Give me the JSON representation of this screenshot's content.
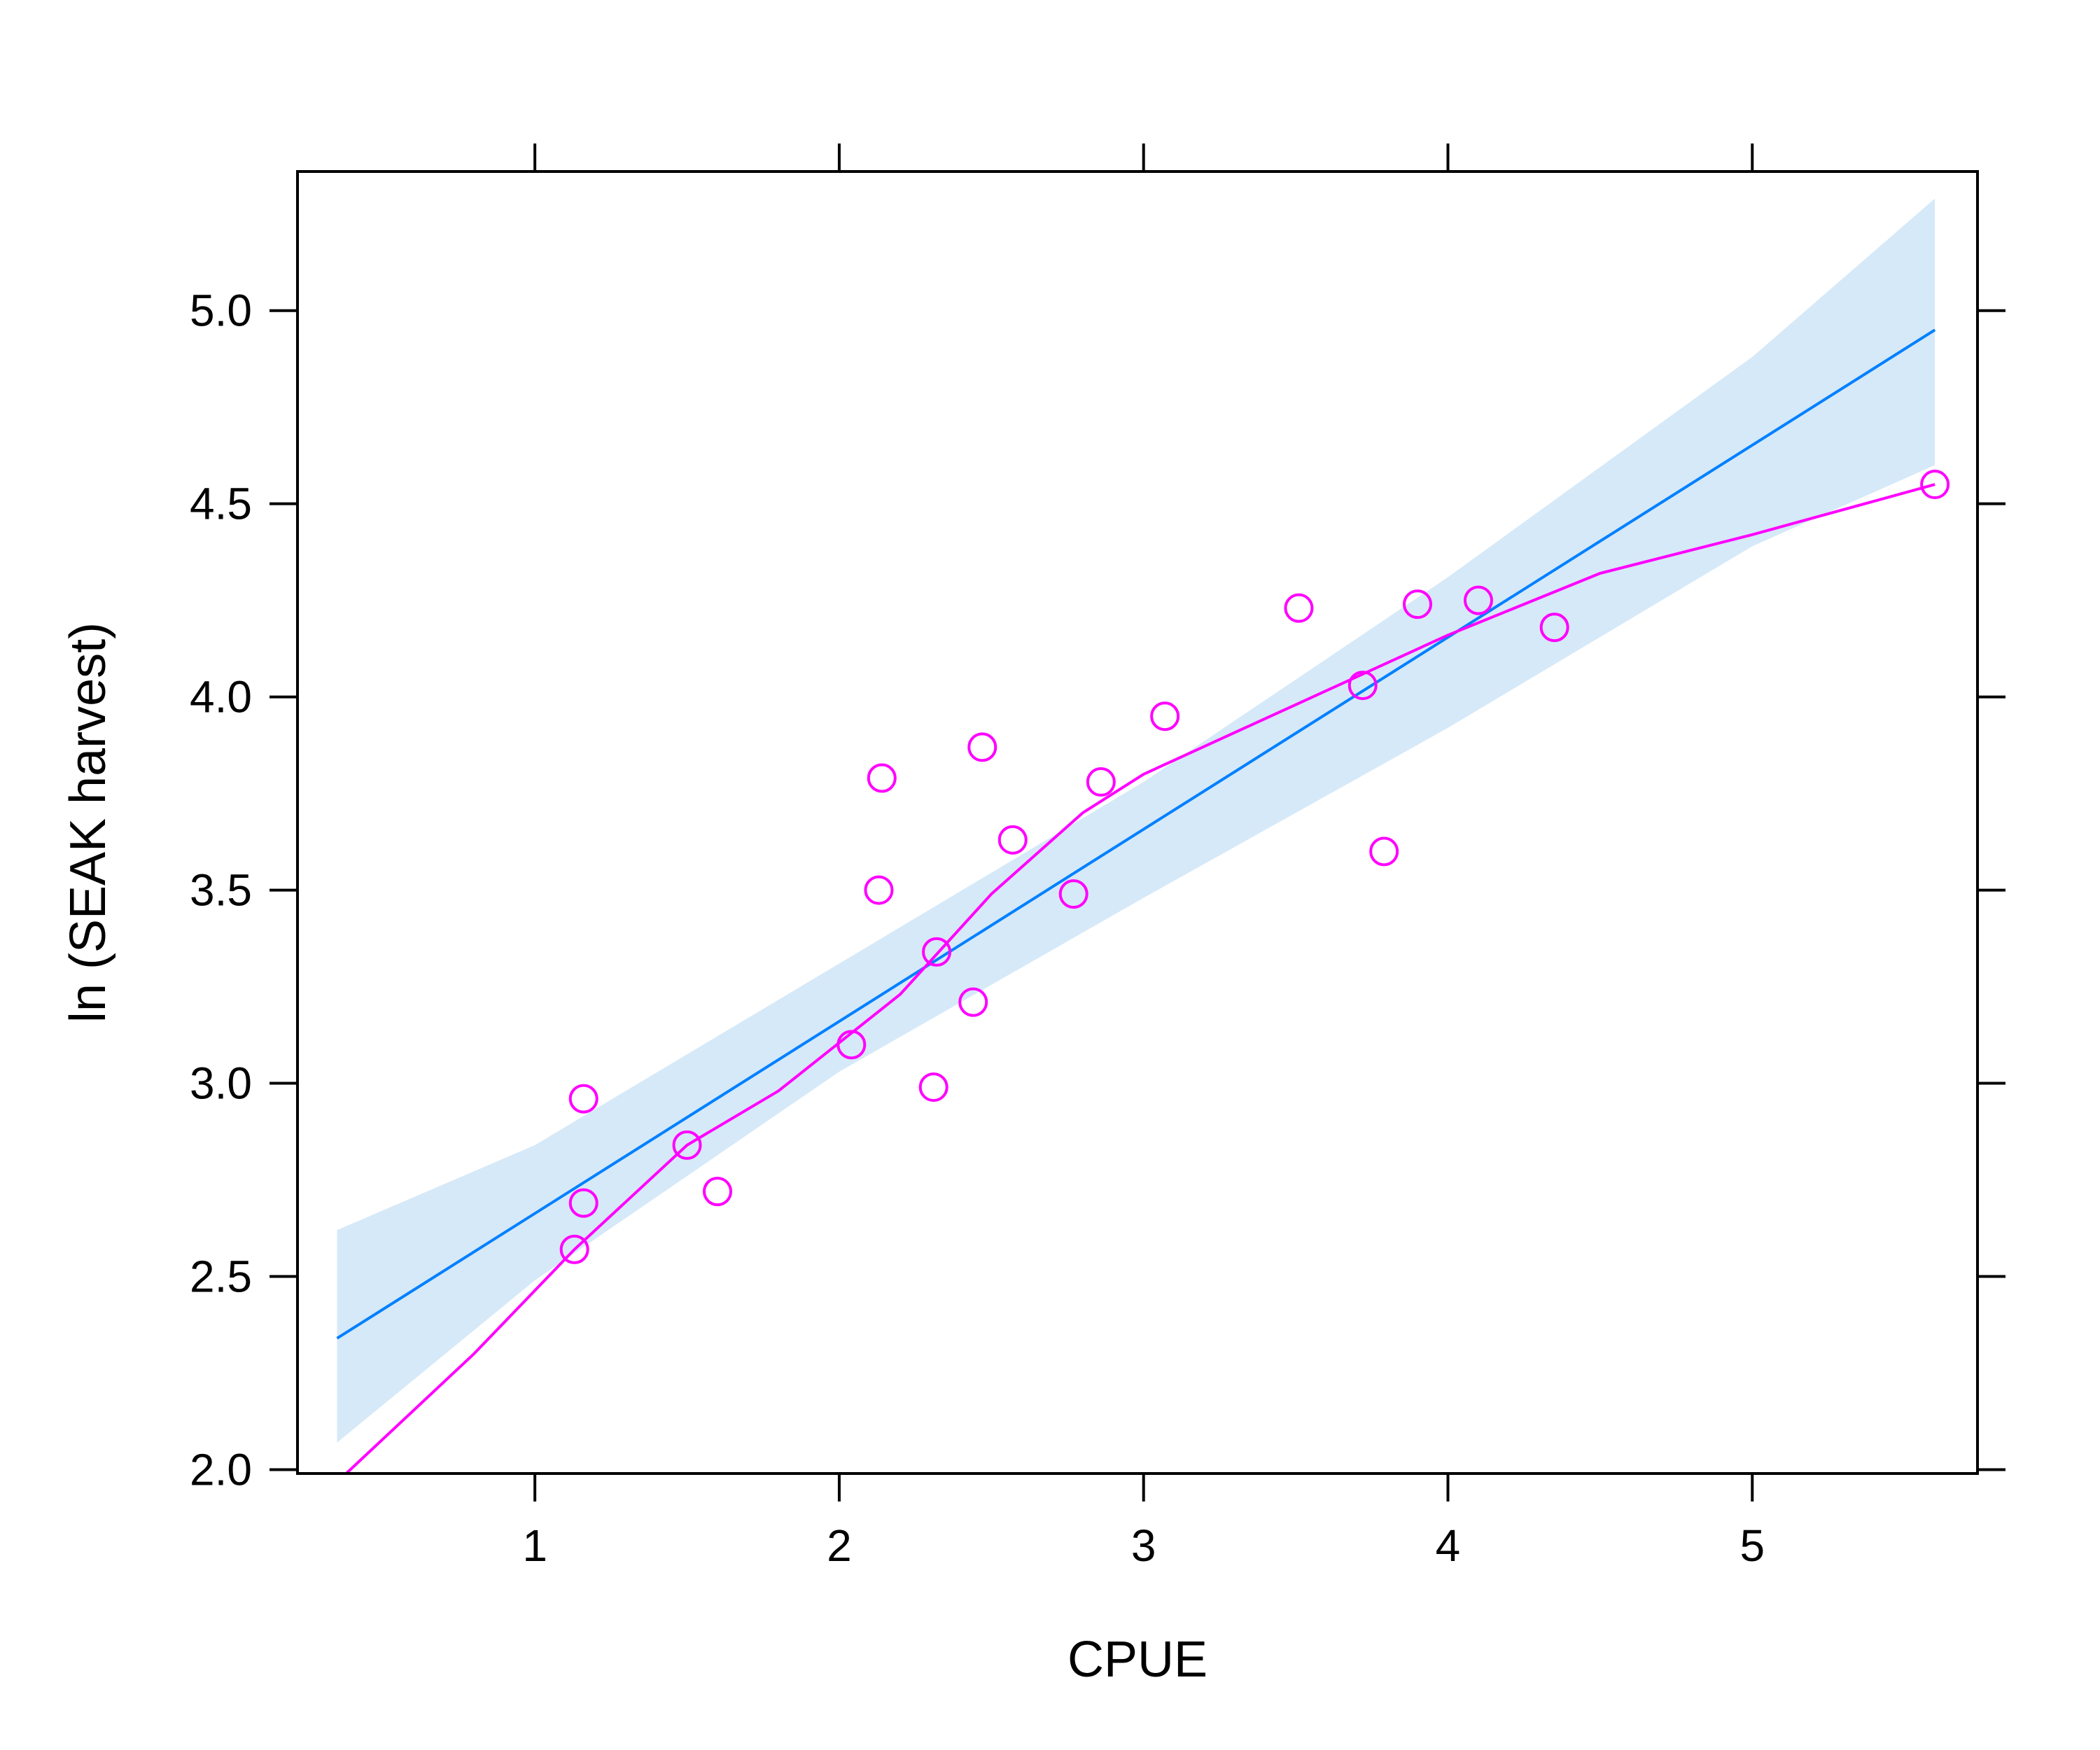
{
  "chart_data": {
    "type": "scatter",
    "title": "",
    "xlabel": "CPUE",
    "ylabel": "ln (SEAK harvest)",
    "xlim": [
      0.22,
      5.74
    ],
    "ylim": [
      1.99,
      5.36
    ],
    "x_ticks": [
      {
        "value": 1,
        "label": "1"
      },
      {
        "value": 2,
        "label": "2"
      },
      {
        "value": 3,
        "label": "3"
      },
      {
        "value": 4,
        "label": "4"
      },
      {
        "value": 5,
        "label": "5"
      }
    ],
    "y_ticks": [
      {
        "value": 2.0,
        "label": "2.0"
      },
      {
        "value": 2.5,
        "label": "2.5"
      },
      {
        "value": 3.0,
        "label": "3.0"
      },
      {
        "value": 3.5,
        "label": "3.5"
      },
      {
        "value": 4.0,
        "label": "4.0"
      },
      {
        "value": 4.5,
        "label": "4.5"
      },
      {
        "value": 5.0,
        "label": "5.0"
      }
    ],
    "grid": false,
    "colors": {
      "points": "#ff00ff",
      "smooth": "#ff00ff",
      "fit": "#0080ff",
      "band": "#d6e9f8",
      "frame": "#000000"
    },
    "points": [
      {
        "x": 1.13,
        "y": 2.57
      },
      {
        "x": 1.16,
        "y": 2.69
      },
      {
        "x": 1.16,
        "y": 2.96
      },
      {
        "x": 1.5,
        "y": 2.84
      },
      {
        "x": 1.6,
        "y": 2.72
      },
      {
        "x": 2.04,
        "y": 3.1
      },
      {
        "x": 2.13,
        "y": 3.5
      },
      {
        "x": 2.14,
        "y": 3.79
      },
      {
        "x": 2.31,
        "y": 2.99
      },
      {
        "x": 2.32,
        "y": 3.34
      },
      {
        "x": 2.44,
        "y": 3.21
      },
      {
        "x": 2.47,
        "y": 3.87
      },
      {
        "x": 2.57,
        "y": 3.63
      },
      {
        "x": 2.77,
        "y": 3.49
      },
      {
        "x": 2.86,
        "y": 3.78
      },
      {
        "x": 3.07,
        "y": 3.95
      },
      {
        "x": 3.51,
        "y": 4.23
      },
      {
        "x": 3.72,
        "y": 4.03
      },
      {
        "x": 3.79,
        "y": 3.6
      },
      {
        "x": 3.9,
        "y": 4.24
      },
      {
        "x": 4.1,
        "y": 4.25
      },
      {
        "x": 4.35,
        "y": 4.18
      },
      {
        "x": 5.6,
        "y": 4.55
      }
    ],
    "fit_line": [
      {
        "x": 0.35,
        "y": 2.34
      },
      {
        "x": 5.6,
        "y": 4.95
      }
    ],
    "confidence_band": {
      "upper": [
        {
          "x": 0.35,
          "y": 2.62
        },
        {
          "x": 1.0,
          "y": 2.84
        },
        {
          "x": 2.0,
          "y": 3.31
        },
        {
          "x": 3.0,
          "y": 3.78
        },
        {
          "x": 4.0,
          "y": 4.31
        },
        {
          "x": 5.0,
          "y": 4.88
        },
        {
          "x": 5.6,
          "y": 5.29
        }
      ],
      "lower": [
        {
          "x": 0.35,
          "y": 2.07
        },
        {
          "x": 1.0,
          "y": 2.49
        },
        {
          "x": 2.0,
          "y": 3.03
        },
        {
          "x": 3.0,
          "y": 3.48
        },
        {
          "x": 4.0,
          "y": 3.92
        },
        {
          "x": 5.0,
          "y": 4.39
        },
        {
          "x": 5.6,
          "y": 4.6
        }
      ]
    },
    "smooth_line": [
      {
        "x": 0.38,
        "y": 1.99
      },
      {
        "x": 0.8,
        "y": 2.3
      },
      {
        "x": 1.13,
        "y": 2.57
      },
      {
        "x": 1.5,
        "y": 2.84
      },
      {
        "x": 1.8,
        "y": 2.98
      },
      {
        "x": 2.2,
        "y": 3.23
      },
      {
        "x": 2.5,
        "y": 3.49
      },
      {
        "x": 2.8,
        "y": 3.7
      },
      {
        "x": 3.0,
        "y": 3.8
      },
      {
        "x": 3.5,
        "y": 3.98
      },
      {
        "x": 4.0,
        "y": 4.16
      },
      {
        "x": 4.5,
        "y": 4.32
      },
      {
        "x": 5.0,
        "y": 4.42
      },
      {
        "x": 5.6,
        "y": 4.55
      }
    ]
  }
}
